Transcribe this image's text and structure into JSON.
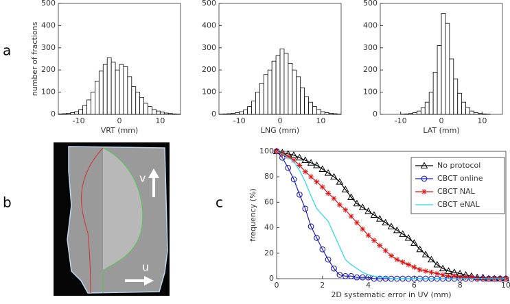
{
  "panel_labels": [
    "a",
    "b",
    "c"
  ],
  "image_labels": [
    "v",
    "u"
  ],
  "chart_data": [
    {
      "type": "histogram",
      "xlabel": "VRT (mm)",
      "ylabel": "number of fractions",
      "color": "#ffffff",
      "bins": [
        -15,
        -14,
        -13,
        -12,
        -11,
        -10,
        -9,
        -8,
        -7,
        -6,
        -5,
        -4,
        -3,
        -2,
        -1,
        0,
        1,
        2,
        3,
        4,
        5,
        6,
        7,
        8,
        9,
        10,
        11,
        12,
        13,
        14,
        15
      ],
      "values": [
        2,
        3,
        5,
        8,
        12,
        22,
        40,
        65,
        100,
        150,
        195,
        225,
        255,
        235,
        200,
        225,
        215,
        170,
        125,
        100,
        75,
        50,
        35,
        22,
        15,
        10,
        6,
        4,
        2,
        1
      ],
      "xlim": [
        -15,
        15
      ],
      "ylim": [
        0,
        500
      ],
      "xticks": [
        -10,
        0,
        10
      ],
      "yticks": [
        0,
        100,
        200,
        300,
        400,
        500
      ]
    },
    {
      "type": "histogram",
      "xlabel": "LNG (mm)",
      "color": "#ffffff",
      "bins": [
        -15,
        -14,
        -13,
        -12,
        -11,
        -10,
        -9,
        -8,
        -7,
        -6,
        -5,
        -4,
        -3,
        -2,
        -1,
        0,
        1,
        2,
        3,
        4,
        5,
        6,
        7,
        8,
        9,
        10,
        11,
        12,
        13,
        14,
        15
      ],
      "values": [
        1,
        2,
        3,
        5,
        8,
        12,
        20,
        35,
        60,
        100,
        140,
        180,
        200,
        240,
        265,
        295,
        275,
        230,
        200,
        170,
        120,
        80,
        55,
        35,
        22,
        12,
        8,
        5,
        3,
        1
      ],
      "xlim": [
        -15,
        15
      ],
      "ylim": [
        0,
        500
      ],
      "xticks": [
        -10,
        0,
        10
      ],
      "yticks": [
        0,
        100,
        200,
        300,
        400,
        500
      ]
    },
    {
      "type": "histogram",
      "xlabel": "LAT (mm)",
      "color": "#ffffff",
      "bins": [
        -15,
        -14,
        -13,
        -12,
        -11,
        -10,
        -9,
        -8,
        -7,
        -6,
        -5,
        -4,
        -3,
        -2,
        -1,
        0,
        1,
        2,
        3,
        4,
        5,
        6,
        7,
        8,
        9,
        10,
        11,
        12,
        13,
        14,
        15
      ],
      "values": [
        0,
        0,
        0,
        0,
        0,
        1,
        2,
        4,
        8,
        15,
        30,
        55,
        100,
        190,
        310,
        455,
        410,
        250,
        160,
        95,
        55,
        30,
        15,
        8,
        4,
        2,
        1,
        0,
        0,
        0
      ],
      "xlim": [
        -15,
        15
      ],
      "ylim": [
        0,
        500
      ],
      "xticks": [
        -10,
        0,
        10
      ],
      "yticks": [
        0,
        100,
        200,
        300,
        400,
        500
      ]
    },
    {
      "type": "line",
      "xlabel": "2D systematic error in UV (mm)",
      "ylabel": "frequency (%)",
      "legend": "upper right",
      "x": [
        0,
        0.25,
        0.5,
        0.75,
        1,
        1.25,
        1.5,
        1.75,
        2,
        2.25,
        2.5,
        2.75,
        3,
        3.25,
        3.5,
        3.75,
        4,
        4.25,
        4.5,
        4.75,
        5,
        5.25,
        5.5,
        5.75,
        6,
        6.25,
        6.5,
        6.75,
        7,
        7.25,
        7.5,
        7.75,
        8,
        8.25,
        8.5,
        8.75,
        9,
        9.25,
        9.5,
        9.75,
        10
      ],
      "series": [
        {
          "name": "No protocol",
          "color": "#000000",
          "marker": "triangle",
          "values": [
            100,
            99,
            98,
            97,
            95,
            93,
            91,
            89,
            86,
            83,
            80,
            76,
            70,
            64,
            59,
            56,
            53,
            50,
            47,
            44,
            41,
            38,
            35,
            32,
            28,
            23,
            19,
            15,
            11,
            8,
            6,
            5,
            4,
            3,
            2,
            1,
            1,
            0,
            0,
            0,
            0
          ]
        },
        {
          "name": "CBCT online",
          "color": "#1f1fb4",
          "marker": "circle",
          "values": [
            100,
            95,
            87,
            78,
            66,
            55,
            41,
            32,
            23,
            15,
            8,
            3,
            2,
            2,
            1,
            1,
            1,
            0,
            0,
            0,
            0,
            0,
            0,
            0,
            0,
            0,
            0,
            0,
            0,
            0,
            0,
            0,
            0,
            0,
            0,
            0,
            0,
            0,
            0,
            0,
            0
          ]
        },
        {
          "name": "CBCT NAL",
          "color": "#e01010",
          "marker": "star",
          "values": [
            100,
            98,
            96,
            93,
            89,
            84,
            80,
            76,
            72,
            67,
            63,
            58,
            54,
            49,
            44,
            39,
            34,
            30,
            26,
            22,
            18,
            15,
            13,
            11,
            9,
            7,
            6,
            5,
            4,
            3,
            2,
            2,
            1,
            1,
            1,
            0,
            0,
            0,
            0,
            0,
            0
          ]
        },
        {
          "name": "CBCT eNAL",
          "color": "#22d8e8",
          "values": [
            100,
            98,
            95,
            92,
            85,
            76,
            65,
            55,
            50,
            45,
            35,
            25,
            15,
            11,
            8,
            5,
            3,
            2,
            1,
            1,
            0,
            0,
            0,
            0,
            0,
            0,
            0,
            0,
            0,
            0,
            0,
            0,
            0,
            0,
            0,
            0,
            0,
            0,
            0,
            0,
            0
          ]
        }
      ],
      "xlim": [
        0,
        10
      ],
      "ylim": [
        0,
        100
      ],
      "xticks": [
        0,
        2,
        4,
        6,
        8,
        10
      ],
      "yticks": [
        0,
        20,
        40,
        60,
        80,
        100
      ]
    }
  ]
}
